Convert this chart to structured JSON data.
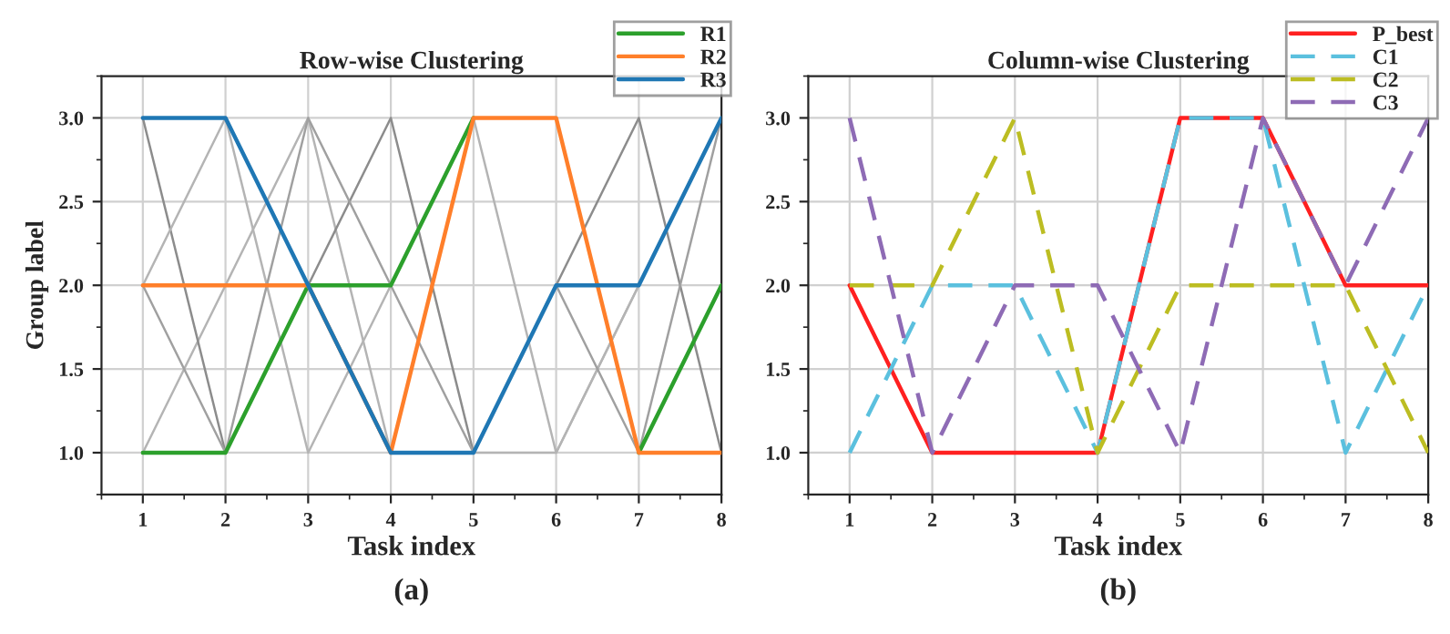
{
  "chart_data": [
    {
      "type": "line",
      "title": "Row-wise Clustering",
      "xlabel": "Task index",
      "ylabel": "Group label",
      "x": [
        1,
        2,
        3,
        4,
        5,
        6,
        7,
        8
      ],
      "xlim": [
        0.5,
        8
      ],
      "ylim": [
        0.75,
        3.25
      ],
      "xticks": [
        1,
        2,
        3,
        4,
        5,
        6,
        7,
        8
      ],
      "yticks": [
        {
          "value": 1,
          "label": "1.0"
        },
        {
          "value": 1.5,
          "label": "1.5"
        },
        {
          "value": 2,
          "label": "2.0"
        },
        {
          "value": 2.5,
          "label": "2.5"
        },
        {
          "value": 3,
          "label": "3.0"
        }
      ],
      "grid": true,
      "legend": "top right",
      "marker": "none",
      "annotations": [
        "(a)"
      ],
      "series": [
        {
          "color": "#b4b4b4",
          "values": [
            1,
            2,
            3,
            1,
            1,
            1,
            2,
            3
          ]
        },
        {
          "color": "#8c8c8c",
          "values": [
            3,
            1,
            2,
            3,
            1,
            2,
            3,
            1
          ]
        },
        {
          "color": "#b4b4b4",
          "values": [
            2,
            3,
            1,
            2,
            3,
            1,
            2,
            3
          ]
        },
        {
          "color": "#a0a0a0",
          "values": [
            2,
            1,
            3,
            2,
            1,
            2,
            1,
            3
          ]
        },
        {
          "name": "R1",
          "color": "#2ca02c",
          "values": [
            1,
            1,
            2,
            2,
            3,
            null,
            1,
            2
          ],
          "line_style": "solid"
        },
        {
          "name": "R2",
          "color": "#ff7f2a",
          "values": [
            2,
            2,
            2,
            1,
            3,
            3,
            1,
            1
          ],
          "line_style": "solid"
        },
        {
          "name": "R3",
          "color": "#1f77b4",
          "values": [
            3,
            3,
            2,
            1,
            1,
            2,
            2,
            3
          ],
          "line_style": "solid"
        }
      ]
    },
    {
      "type": "line",
      "title": "Column-wise Clustering",
      "xlabel": "Task index",
      "x": [
        1,
        2,
        3,
        4,
        5,
        6,
        7,
        8
      ],
      "xlim": [
        0.5,
        8
      ],
      "ylim": [
        0.75,
        3.25
      ],
      "xticks": [
        1,
        2,
        3,
        4,
        5,
        6,
        7,
        8
      ],
      "yticks": [
        {
          "value": 1,
          "label": "1.0"
        },
        {
          "value": 1.5,
          "label": "1.5"
        },
        {
          "value": 2,
          "label": "2.0"
        },
        {
          "value": 2.5,
          "label": "2.5"
        },
        {
          "value": 3,
          "label": "3.0"
        }
      ],
      "grid": true,
      "legend": "top right",
      "marker": "none",
      "annotations": [
        "(b)"
      ],
      "series": [
        {
          "name": "P_best",
          "color": "#ff2020",
          "values": [
            2,
            1,
            1,
            1,
            3,
            3,
            2,
            2
          ],
          "line_style": "solid"
        },
        {
          "name": "C1",
          "color": "#5bc0de",
          "values": [
            1,
            2,
            2,
            1,
            3,
            3,
            1,
            2
          ],
          "line_style": "dashed"
        },
        {
          "name": "C2",
          "color": "#bcbd22",
          "values": [
            2,
            2,
            3,
            1,
            2,
            2,
            2,
            1
          ],
          "line_style": "dashed"
        },
        {
          "name": "C3",
          "color": "#8e6bb5",
          "values": [
            3,
            1,
            2,
            2,
            1,
            3,
            2,
            3
          ],
          "line_style": "dashed"
        }
      ]
    }
  ]
}
